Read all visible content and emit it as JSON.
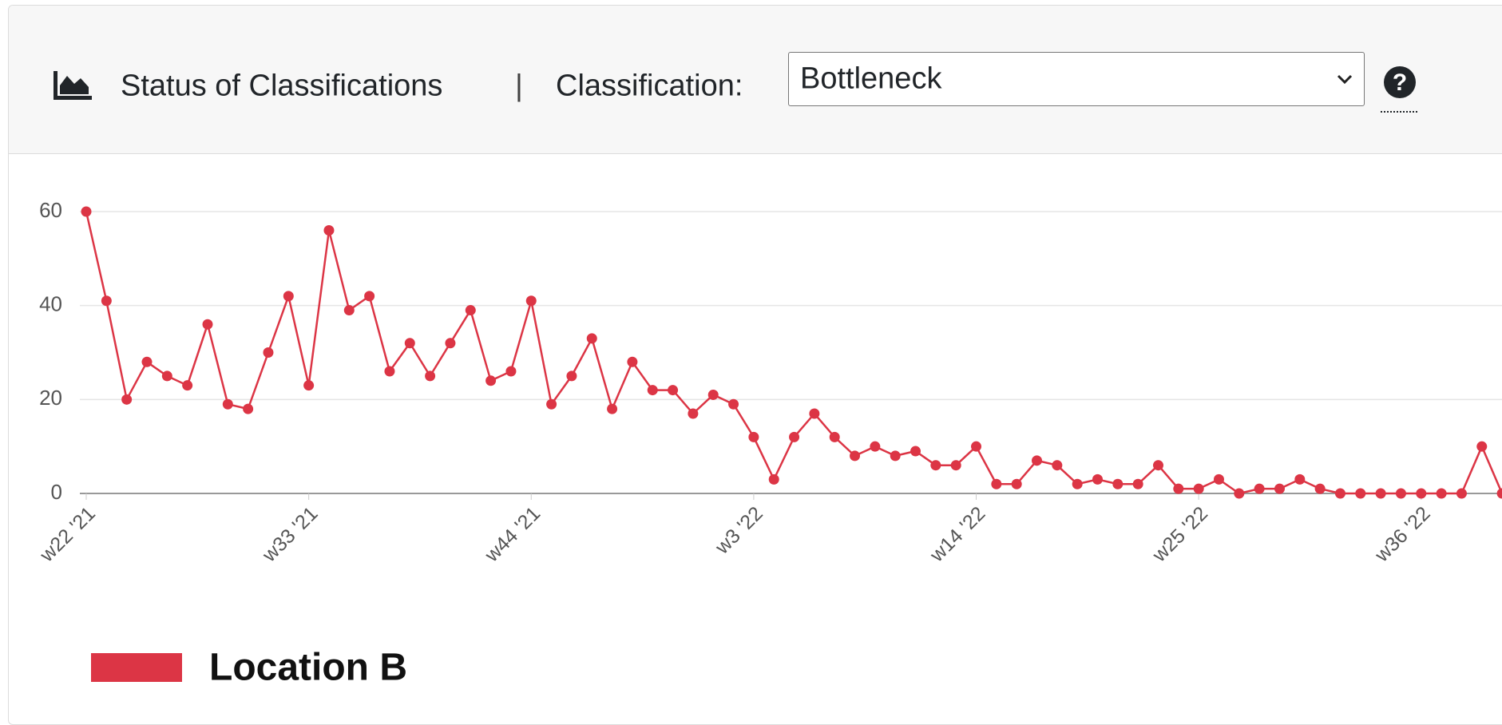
{
  "header": {
    "title": "Status of Classifications",
    "separator": "|",
    "classification_label": "Classification:",
    "selected": "Bottleneck"
  },
  "chart_data": {
    "type": "line",
    "categories": [
      "w22 '21",
      null,
      null,
      null,
      null,
      null,
      null,
      null,
      null,
      null,
      null,
      "w33 '21",
      null,
      null,
      null,
      null,
      null,
      null,
      null,
      null,
      null,
      null,
      "w44 '21",
      null,
      null,
      null,
      null,
      null,
      null,
      null,
      null,
      null,
      null,
      "w3 '22",
      null,
      null,
      null,
      null,
      null,
      null,
      null,
      null,
      null,
      null,
      "w14 '22",
      null,
      null,
      null,
      null,
      null,
      null,
      null,
      null,
      null,
      null,
      "w25 '22",
      null,
      null,
      null,
      null,
      null,
      null,
      null,
      null,
      null,
      null,
      "w36 '22",
      null,
      null,
      null,
      null
    ],
    "series": [
      {
        "name": "Location B",
        "color": "#dc3545",
        "values": [
          60,
          41,
          20,
          28,
          25,
          23,
          36,
          19,
          18,
          30,
          42,
          23,
          56,
          39,
          42,
          26,
          32,
          25,
          32,
          39,
          24,
          26,
          41,
          19,
          25,
          33,
          18,
          28,
          22,
          22,
          17,
          21,
          19,
          12,
          3,
          12,
          17,
          12,
          8,
          10,
          8,
          9,
          6,
          6,
          10,
          2,
          2,
          7,
          6,
          2,
          3,
          2,
          2,
          6,
          1,
          1,
          3,
          0,
          1,
          1,
          3,
          1,
          0,
          0,
          0,
          0,
          0,
          0,
          0,
          10,
          0
        ]
      }
    ],
    "ylim": [
      0,
      60
    ],
    "yticks": [
      0,
      20,
      40,
      60
    ],
    "grid": true
  }
}
